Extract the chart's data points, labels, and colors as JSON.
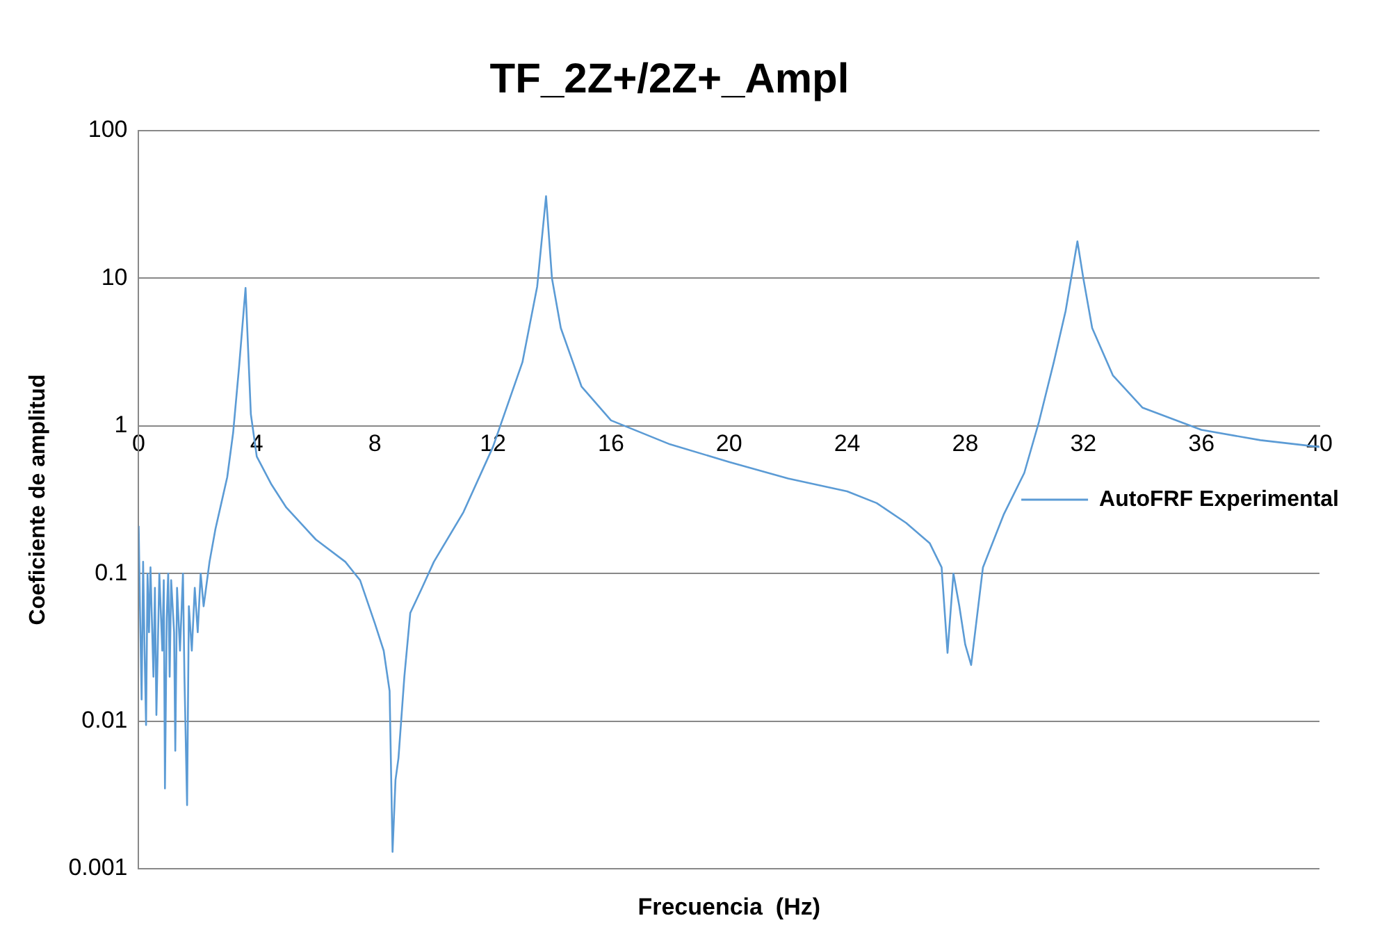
{
  "chart_data": {
    "type": "line",
    "title": "TF_2Z+/2Z+_Ampl",
    "xlabel": "Frecuencia  (Hz)",
    "ylabel": "Coeficiente de amplitud",
    "x": [
      0,
      0.05,
      0.1,
      0.15,
      0.2,
      0.25,
      0.3,
      0.35,
      0.4,
      0.5,
      0.55,
      0.6,
      0.7,
      0.8,
      0.85,
      0.89,
      0.95,
      1.0,
      1.05,
      1.1,
      1.2,
      1.24,
      1.3,
      1.4,
      1.5,
      1.55,
      1.64,
      1.7,
      1.8,
      1.9,
      2.0,
      2.1,
      2.2,
      2.4,
      2.6,
      2.8,
      3.0,
      3.2,
      3.4,
      3.62,
      3.8,
      4.0,
      4.5,
      5,
      6,
      7,
      7.5,
      8,
      8.3,
      8.5,
      8.6,
      8.7,
      8.8,
      9.0,
      9.2,
      9.6,
      10,
      11,
      12,
      13,
      13.5,
      13.8,
      14.0,
      14.3,
      15,
      16,
      18,
      20,
      22,
      24,
      25,
      26,
      26.8,
      27.2,
      27.4,
      27.6,
      27.8,
      28.0,
      28.2,
      28.6,
      29.3,
      30,
      30.5,
      31,
      31.4,
      31.8,
      32.0,
      32.3,
      33,
      34,
      36,
      38,
      40
    ],
    "series": [
      {
        "name": "AutoFRF Experimental",
        "color": "#5b9bd5",
        "values": [
          0.21,
          0.05,
          0.014,
          0.12,
          0.03,
          0.0094,
          0.1,
          0.04,
          0.11,
          0.02,
          0.08,
          0.011,
          0.1,
          0.03,
          0.09,
          0.0035,
          0.05,
          0.1,
          0.02,
          0.09,
          0.04,
          0.0063,
          0.08,
          0.03,
          0.1,
          0.02,
          0.0027,
          0.06,
          0.03,
          0.08,
          0.04,
          0.1,
          0.06,
          0.12,
          0.2,
          0.3,
          0.45,
          0.9,
          2.5,
          8.6,
          1.2,
          0.62,
          0.4,
          0.28,
          0.17,
          0.12,
          0.09,
          0.046,
          0.03,
          0.016,
          0.0013,
          0.004,
          0.0056,
          0.02,
          0.054,
          0.08,
          0.12,
          0.26,
          0.72,
          2.7,
          8.8,
          36,
          10,
          4.6,
          1.85,
          1.09,
          0.75,
          0.57,
          0.44,
          0.36,
          0.3,
          0.22,
          0.16,
          0.11,
          0.029,
          0.1,
          0.06,
          0.033,
          0.024,
          0.11,
          0.25,
          0.48,
          1.07,
          2.7,
          6,
          17.8,
          10,
          4.6,
          2.2,
          1.33,
          0.94,
          0.8,
          0.72
        ]
      }
    ],
    "xlim": [
      0,
      40
    ],
    "xticks": [
      0,
      4,
      8,
      12,
      16,
      20,
      24,
      28,
      32,
      36,
      40
    ],
    "ylim": [
      0.001,
      100
    ],
    "yticks": [
      0.001,
      0.01,
      0.1,
      1,
      10,
      100
    ],
    "log": "y",
    "grid": "y",
    "legend": "right",
    "marker": "none",
    "line_style": "solid"
  }
}
